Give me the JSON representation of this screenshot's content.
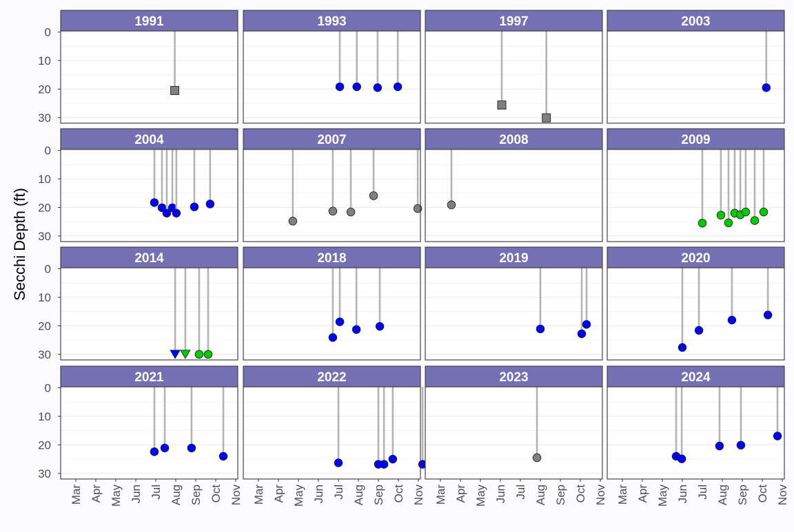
{
  "chart_data": {
    "type": "scatter",
    "ylabel": "Secchi Depth (ft)",
    "ylim": [
      0,
      31
    ],
    "y_reversed": true,
    "yticks": [
      0,
      10,
      20,
      30
    ],
    "xticks": [
      "Mar",
      "Apr",
      "May",
      "Jun",
      "Jul",
      "Aug",
      "Sep",
      "Oct",
      "Nov"
    ],
    "facet_layout": "4 columns x 4 rows",
    "colors": {
      "strip_fill": "#7570b3",
      "strip_text": "#ffffff",
      "drop_line": "#b3b3b3",
      "blue": "#0000ff",
      "gray": "#808080",
      "green": "#00cc00",
      "grid": "#ebebeb",
      "border": "#333333"
    },
    "panels": [
      {
        "label": "1991",
        "points": [
          {
            "month": 7.95,
            "depth": 20.5,
            "shape": "square",
            "color": "gray"
          }
        ]
      },
      {
        "label": "1993",
        "points": [
          {
            "month": 7.07,
            "depth": 19.2,
            "shape": "circle",
            "color": "blue"
          },
          {
            "month": 7.92,
            "depth": 19.2,
            "shape": "circle",
            "color": "blue"
          },
          {
            "month": 8.96,
            "depth": 19.5,
            "shape": "circle",
            "color": "blue"
          },
          {
            "month": 9.97,
            "depth": 19.2,
            "shape": "circle",
            "color": "blue"
          }
        ]
      },
      {
        "label": "1997",
        "points": [
          {
            "month": 6.07,
            "depth": 25.6,
            "shape": "square",
            "color": "gray"
          },
          {
            "month": 8.3,
            "depth": 30.1,
            "shape": "square",
            "color": "gray"
          }
        ]
      },
      {
        "label": "2003",
        "points": [
          {
            "month": 10.2,
            "depth": 19.5,
            "shape": "circle",
            "color": "blue"
          }
        ]
      },
      {
        "label": "2004",
        "points": [
          {
            "month": 6.93,
            "depth": 18.3,
            "shape": "circle",
            "color": "blue"
          },
          {
            "month": 7.31,
            "depth": 20.1,
            "shape": "circle",
            "color": "blue"
          },
          {
            "month": 7.55,
            "depth": 22.0,
            "shape": "circle",
            "color": "blue"
          },
          {
            "month": 7.83,
            "depth": 20.1,
            "shape": "circle",
            "color": "blue"
          },
          {
            "month": 8.03,
            "depth": 22.0,
            "shape": "circle",
            "color": "blue"
          },
          {
            "month": 8.93,
            "depth": 19.8,
            "shape": "circle",
            "color": "blue"
          },
          {
            "month": 9.72,
            "depth": 18.8,
            "shape": "circle",
            "color": "blue"
          }
        ]
      },
      {
        "label": "2007",
        "points": [
          {
            "month": 4.72,
            "depth": 24.8,
            "shape": "circle",
            "color": "gray"
          },
          {
            "month": 6.72,
            "depth": 21.3,
            "shape": "circle",
            "color": "gray"
          },
          {
            "month": 7.62,
            "depth": 21.6,
            "shape": "circle",
            "color": "gray"
          },
          {
            "month": 8.76,
            "depth": 15.9,
            "shape": "circle",
            "color": "gray"
          },
          {
            "month": 10.97,
            "depth": 20.4,
            "shape": "circle",
            "color": "gray"
          }
        ]
      },
      {
        "label": "2008",
        "points": [
          {
            "month": 3.55,
            "depth": 19.1,
            "shape": "circle",
            "color": "gray"
          }
        ]
      },
      {
        "label": "2009",
        "points": [
          {
            "month": 7.0,
            "depth": 25.5,
            "shape": "circle",
            "color": "green"
          },
          {
            "month": 7.93,
            "depth": 22.7,
            "shape": "circle",
            "color": "green"
          },
          {
            "month": 8.31,
            "depth": 25.4,
            "shape": "circle",
            "color": "green"
          },
          {
            "month": 8.62,
            "depth": 22.0,
            "shape": "circle",
            "color": "green"
          },
          {
            "month": 8.9,
            "depth": 22.6,
            "shape": "circle",
            "color": "green"
          },
          {
            "month": 9.17,
            "depth": 21.6,
            "shape": "circle",
            "color": "green"
          },
          {
            "month": 9.62,
            "depth": 24.6,
            "shape": "circle",
            "color": "green"
          },
          {
            "month": 10.07,
            "depth": 21.6,
            "shape": "circle",
            "color": "green"
          }
        ]
      },
      {
        "label": "2014",
        "points": [
          {
            "month": 7.97,
            "depth": 30.0,
            "shape": "triangle",
            "color": "blue"
          },
          {
            "month": 8.48,
            "depth": 30.0,
            "shape": "triangle",
            "color": "green"
          },
          {
            "month": 9.17,
            "depth": 30.0,
            "shape": "circle",
            "color": "green"
          },
          {
            "month": 9.62,
            "depth": 30.0,
            "shape": "circle",
            "color": "green"
          }
        ]
      },
      {
        "label": "2018",
        "points": [
          {
            "month": 6.72,
            "depth": 24.1,
            "shape": "circle",
            "color": "blue"
          },
          {
            "month": 7.07,
            "depth": 18.6,
            "shape": "circle",
            "color": "blue"
          },
          {
            "month": 7.9,
            "depth": 21.3,
            "shape": "circle",
            "color": "blue"
          },
          {
            "month": 9.07,
            "depth": 20.2,
            "shape": "circle",
            "color": "blue"
          }
        ]
      },
      {
        "label": "2019",
        "points": [
          {
            "month": 8.0,
            "depth": 21.1,
            "shape": "circle",
            "color": "blue"
          },
          {
            "month": 10.07,
            "depth": 22.8,
            "shape": "circle",
            "color": "blue"
          },
          {
            "month": 10.31,
            "depth": 19.5,
            "shape": "circle",
            "color": "blue"
          }
        ]
      },
      {
        "label": "2020",
        "points": [
          {
            "month": 6.0,
            "depth": 27.6,
            "shape": "circle",
            "color": "blue"
          },
          {
            "month": 6.83,
            "depth": 21.6,
            "shape": "circle",
            "color": "blue"
          },
          {
            "month": 8.48,
            "depth": 18.0,
            "shape": "circle",
            "color": "blue"
          },
          {
            "month": 10.28,
            "depth": 16.2,
            "shape": "circle",
            "color": "blue"
          }
        ]
      },
      {
        "label": "2021",
        "points": [
          {
            "month": 6.93,
            "depth": 22.4,
            "shape": "circle",
            "color": "blue"
          },
          {
            "month": 7.45,
            "depth": 21.1,
            "shape": "circle",
            "color": "blue"
          },
          {
            "month": 8.79,
            "depth": 21.1,
            "shape": "circle",
            "color": "blue"
          },
          {
            "month": 10.38,
            "depth": 24.0,
            "shape": "circle",
            "color": "blue"
          }
        ]
      },
      {
        "label": "2022",
        "points": [
          {
            "month": 7.0,
            "depth": 26.3,
            "shape": "circle",
            "color": "blue"
          },
          {
            "month": 9.0,
            "depth": 26.8,
            "shape": "circle",
            "color": "blue"
          },
          {
            "month": 9.28,
            "depth": 26.8,
            "shape": "circle",
            "color": "blue"
          },
          {
            "month": 9.72,
            "depth": 25.0,
            "shape": "circle",
            "color": "blue"
          },
          {
            "month": 11.21,
            "depth": 26.8,
            "shape": "circle",
            "color": "blue"
          }
        ]
      },
      {
        "label": "2023",
        "points": [
          {
            "month": 7.83,
            "depth": 24.5,
            "shape": "circle",
            "color": "gray"
          }
        ]
      },
      {
        "label": "2024",
        "points": [
          {
            "month": 5.69,
            "depth": 24.0,
            "shape": "circle",
            "color": "blue"
          },
          {
            "month": 5.97,
            "depth": 24.9,
            "shape": "circle",
            "color": "blue"
          },
          {
            "month": 7.86,
            "depth": 20.4,
            "shape": "circle",
            "color": "blue"
          },
          {
            "month": 8.93,
            "depth": 20.1,
            "shape": "circle",
            "color": "blue"
          },
          {
            "month": 10.76,
            "depth": 16.9,
            "shape": "circle",
            "color": "blue"
          }
        ]
      }
    ]
  }
}
